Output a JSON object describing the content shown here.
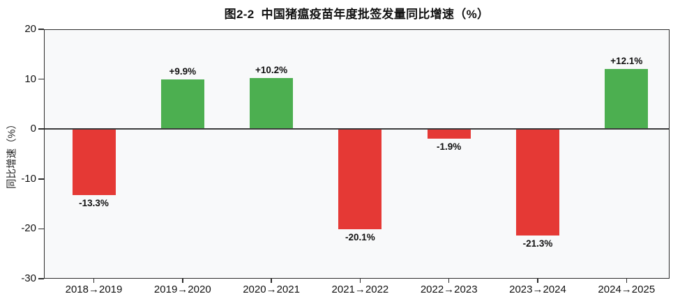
{
  "chart_data": {
    "type": "bar",
    "title": "图2-2  中国猪瘟疫苗年度批签发量同比增速（%）",
    "ylabel": "同比增速（%）",
    "xlabel": "",
    "categories": [
      "2018→2019",
      "2019→2020",
      "2020→2021",
      "2021→2022",
      "2022→2023",
      "2023→2024",
      "2024→2025"
    ],
    "values": [
      -13.3,
      9.9,
      10.2,
      -20.1,
      -1.9,
      -21.3,
      12.1
    ],
    "bar_labels": [
      "-13.3%",
      "+9.9%",
      "+10.2%",
      "-20.1%",
      "-1.9%",
      "-21.3%",
      "+12.1%"
    ],
    "ylim": [
      -30,
      20
    ],
    "yticks": [
      20,
      10,
      0,
      -10,
      -20,
      -30
    ],
    "grid": false,
    "legend_position": "none",
    "colors": {
      "positive_bar": "#4caf50",
      "negative_bar": "#e53935",
      "axis": "#2b2b2b",
      "zero_line": "#3b3b3b",
      "plot_background": "#f8f9fa",
      "label_text": "#111111"
    }
  }
}
